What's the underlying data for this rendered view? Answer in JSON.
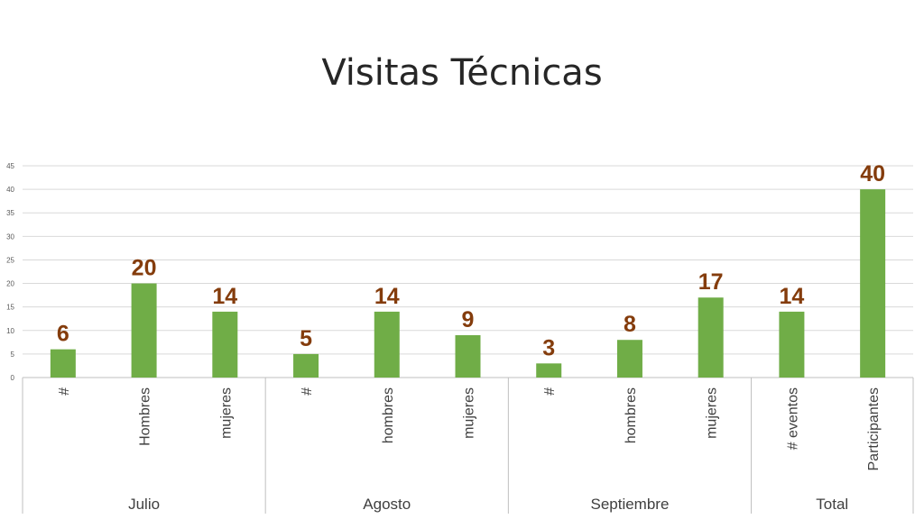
{
  "page": {
    "title": "Visitas Técnicas"
  },
  "chart_data": {
    "type": "bar",
    "title": "Visitas Técnicas",
    "categories": [
      "#",
      "Hombres",
      "mujeres",
      "#",
      "hombres",
      "mujeres",
      "#",
      "hombres",
      "mujeres",
      "# eventos",
      "Participantes"
    ],
    "groups": [
      {
        "name": "Julio",
        "span": 3
      },
      {
        "name": "Agosto",
        "span": 3
      },
      {
        "name": "Septiembre",
        "span": 3
      },
      {
        "name": "Total",
        "span": 2
      }
    ],
    "values": [
      6,
      20,
      14,
      5,
      14,
      9,
      3,
      8,
      17,
      14,
      40
    ],
    "ylim": [
      0,
      45
    ],
    "yticks": [
      0,
      5,
      10,
      15,
      20,
      25,
      30,
      35,
      40,
      45
    ],
    "grid": true,
    "colors": {
      "bar": "#70ad47",
      "data_label": "#843c0c",
      "grid": "#d9d9d9",
      "axis": "#bfbfbf"
    }
  }
}
